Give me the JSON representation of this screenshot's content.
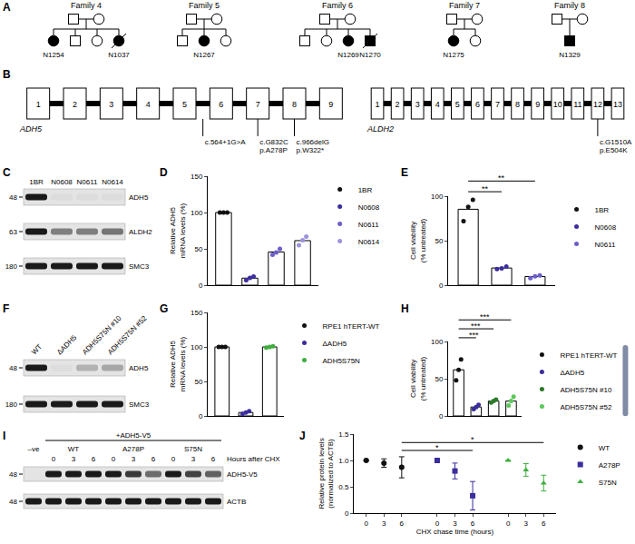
{
  "pedigrees": {
    "panel": "A",
    "families": [
      {
        "title": "Family 4",
        "parents": [
          {
            "sex": "M"
          },
          {
            "sex": "F"
          }
        ],
        "children": [
          {
            "sex": "F",
            "affected": true,
            "id": "N1254"
          },
          {
            "sex": "M"
          },
          {
            "sex": "F"
          },
          {
            "sex": "F",
            "affected": true,
            "deceased": true,
            "id": "N1037"
          }
        ]
      },
      {
        "title": "Family 5",
        "parents": [
          {
            "sex": "M"
          },
          {
            "sex": "F"
          }
        ],
        "children": [
          {
            "sex": "M"
          },
          {
            "sex": "F",
            "affected": true,
            "id": "N1267"
          },
          {
            "sex": "F"
          }
        ]
      },
      {
        "title": "Family 6",
        "parents": [
          {
            "sex": "M"
          },
          {
            "sex": "F"
          }
        ],
        "children": [
          {
            "sex": "M"
          },
          {
            "sex": "F"
          },
          {
            "sex": "F",
            "affected": true,
            "id": "N1269"
          },
          {
            "sex": "M",
            "affected": true,
            "deceased": true,
            "id": "N1270"
          }
        ]
      },
      {
        "title": "Family 7",
        "parents": [
          {
            "sex": "M"
          },
          {
            "sex": "F"
          }
        ],
        "children": [
          {
            "sex": "F",
            "affected": true,
            "id": "N1275"
          },
          {
            "sex": "F"
          }
        ]
      },
      {
        "title": "Family 8",
        "parents": [
          {
            "sex": "M"
          },
          {
            "sex": "F"
          }
        ],
        "children": [
          {
            "sex": "M",
            "affected": true,
            "id": "N1329"
          }
        ]
      }
    ]
  },
  "gene_diagram": {
    "panel": "B",
    "genes": [
      {
        "name": "ADH5",
        "exons": [
          1,
          2,
          3,
          4,
          5,
          6,
          7,
          8,
          9
        ],
        "variants": [
          {
            "exon": 5,
            "intron": true,
            "text": [
              "c.564+1G>A"
            ]
          },
          {
            "exon": 7,
            "text": [
              "c.G832C",
              "p.A278P"
            ]
          },
          {
            "exon": 8,
            "text": [
              "c.966delG",
              "p.W322*"
            ]
          }
        ]
      },
      {
        "name": "ALDH2",
        "exons": [
          1,
          2,
          3,
          4,
          5,
          6,
          7,
          8,
          9,
          10,
          11,
          12,
          13
        ],
        "variants": [
          {
            "exon": 12,
            "text": [
              "c.G1510A",
              "p.E504K"
            ]
          }
        ]
      }
    ]
  },
  "blots": [
    {
      "panel": "C",
      "lanes": [
        "1BR",
        "N0608",
        "N0611",
        "N0614"
      ],
      "rows": [
        {
          "name": "ADH5",
          "kda": 48,
          "bands": [
            1,
            0.04,
            0.04,
            0.04
          ]
        },
        {
          "name": "ALDH2",
          "kda": 63,
          "bands": [
            1,
            0.5,
            0.5,
            0.55
          ]
        },
        {
          "name": "SMC3",
          "kda": 180,
          "bands": [
            1,
            1,
            1,
            1
          ]
        }
      ]
    },
    {
      "panel": "F",
      "lanes": [
        "WT",
        "ΔADH5",
        "ADH5S75N #10",
        "ADH5S75N #52"
      ],
      "rows": [
        {
          "name": "ADH5",
          "kda": 48,
          "bands": [
            1,
            0.03,
            0.25,
            0.3
          ]
        },
        {
          "name": "SMC3",
          "kda": 180,
          "bands": [
            1,
            1,
            1,
            1
          ]
        }
      ]
    },
    {
      "panel": "I",
      "control_lane": "–ve",
      "header": "+ADH5-V5",
      "groups": [
        "WT",
        "A278P",
        "S75N"
      ],
      "lanes": [
        "0",
        "3",
        "6"
      ],
      "lane_title": "Hours after CHX",
      "rows": [
        {
          "name": "ADH5-V5",
          "kda": 48,
          "bands": [
            0,
            1,
            1,
            1,
            1,
            0.85,
            0.6,
            1,
            0.8,
            0.65
          ]
        },
        {
          "name": "ACTB",
          "kda": 48,
          "bands": [
            1,
            1,
            1,
            1,
            1,
            1,
            1,
            1,
            1,
            1
          ]
        }
      ]
    }
  ],
  "chart_data": [
    {
      "panel": "D",
      "type": "bar",
      "categories": [
        "1BR",
        "N0608",
        "N0611",
        "N0614"
      ],
      "values": [
        100,
        9.7,
        45.7,
        61.3
      ],
      "points": [
        [
          100,
          100,
          100
        ],
        [
          7,
          10,
          12
        ],
        [
          42,
          45,
          50
        ],
        [
          55,
          62,
          67
        ]
      ],
      "colors": [
        "#111111",
        "#3a2d9c",
        "#6a5fc8",
        "#9b94dc"
      ],
      "ylabel": [
        "Relative ADH5",
        "mRNA levels (%)"
      ],
      "ylim": [
        0,
        150
      ],
      "yticks": [
        0,
        50,
        100,
        150
      ],
      "tick_labels": "y",
      "legend": "right"
    },
    {
      "panel": "E",
      "type": "bar",
      "categories": [
        "1BR",
        "N0608",
        "N0611"
      ],
      "values": [
        85.3,
        19.3,
        9.7
      ],
      "points": [
        [
          72,
          88,
          96
        ],
        [
          18,
          19,
          21
        ],
        [
          8,
          10,
          11
        ]
      ],
      "colors": [
        "#111111",
        "#3a2d9c",
        "#6a5fc8"
      ],
      "ylabel": [
        "Cell viability",
        "(% untreated)"
      ],
      "ylim": [
        0,
        100
      ],
      "yticks": [
        0,
        50,
        100
      ],
      "significance": [
        {
          "text": "**",
          "from": "1BR",
          "to": "N0608"
        },
        {
          "text": "**",
          "from": "1BR",
          "to": "N0611"
        }
      ],
      "tick_labels": "y",
      "legend": "right"
    },
    {
      "panel": "G",
      "type": "bar",
      "categories": [
        "RPE1 hTERT-WT",
        "ΔADH5",
        "ADH5S75N"
      ],
      "values": [
        100,
        5,
        100
      ],
      "points": [
        [
          100,
          100,
          100
        ],
        [
          3,
          5,
          7
        ],
        [
          99,
          100,
          101
        ]
      ],
      "colors": [
        "#111111",
        "#3a2d9c",
        "#3fae3f"
      ],
      "ylabel": [
        "Relative ADH5",
        "mRNA levels (%)"
      ],
      "ylim": [
        0,
        150
      ],
      "yticks": [
        0,
        50,
        100,
        150
      ],
      "tick_labels": "y",
      "legend": "right"
    },
    {
      "panel": "H",
      "type": "bar",
      "categories": [
        "RPE1 hTERT-WT",
        "ΔADH5",
        "ADH5S75N #10",
        "ADH5S75N #52"
      ],
      "values": [
        62,
        12,
        20,
        20
      ],
      "points": [
        [
          48,
          62,
          76
        ],
        [
          9,
          12,
          15
        ],
        [
          18,
          20,
          22
        ],
        [
          14,
          20,
          26
        ]
      ],
      "colors": [
        "#111111",
        "#3a2d9c",
        "#2b7a2b",
        "#5cc85c"
      ],
      "ylabel": [
        "Cell viability",
        "(% untreated)"
      ],
      "ylim": [
        0,
        100
      ],
      "yticks": [
        0,
        50,
        100
      ],
      "significance": [
        {
          "text": "***",
          "from": "RPE1 hTERT-WT",
          "to": "ΔADH5"
        },
        {
          "text": "***",
          "from": "RPE1 hTERT-WT",
          "to": "ADH5S75N #10"
        },
        {
          "text": "***",
          "from": "RPE1 hTERT-WT",
          "to": "ADH5S75N #52"
        }
      ],
      "tick_labels": "y",
      "legend": "right"
    },
    {
      "panel": "J",
      "type": "scatter",
      "categories": [
        "0",
        "3",
        "6"
      ],
      "series": [
        {
          "name": "WT",
          "color": "#111111",
          "marker": "circle",
          "values": [
            1,
            0.95,
            0.87
          ],
          "errors": [
            0,
            0.08,
            0.2
          ]
        },
        {
          "name": "A278P",
          "color": "#3a2d9c",
          "marker": "square",
          "values": [
            1,
            0.8,
            0.33
          ],
          "errors": [
            0,
            0.15,
            0.27
          ]
        },
        {
          "name": "S75N",
          "color": "#3fae3f",
          "marker": "triangle-up",
          "values": [
            1,
            0.82,
            0.57
          ],
          "errors": [
            0,
            0.12,
            0.15
          ]
        }
      ],
      "xlabel": "CHX chase time (hours)",
      "ylabel": [
        "Relative protein levels",
        "(normalized to ACTB)"
      ],
      "ylim": [
        0,
        1.5
      ],
      "yticks": [
        0,
        0.5,
        {
          "value": 1,
          "label": "1.0"
        },
        1.5
      ],
      "significance": [
        {
          "text": "*",
          "from": {
            "series": "WT",
            "category": "6"
          },
          "to": {
            "series": "A278P",
            "category": "6"
          }
        },
        {
          "text": "*",
          "from": {
            "series": "WT",
            "category": "6"
          },
          "to": {
            "series": "S75N",
            "category": "6"
          }
        }
      ],
      "legend": "right"
    }
  ]
}
